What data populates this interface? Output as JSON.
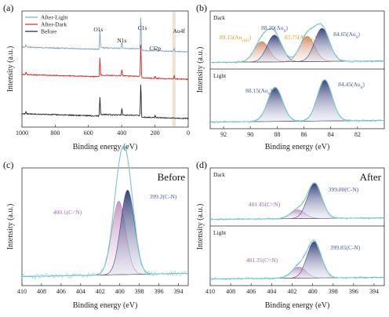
{
  "colors": {
    "teal": "#5fb8b8",
    "navy": "#2d3a78",
    "pink": "#b97fb4",
    "orange": "#c97a55",
    "gold": "#d7a02a",
    "red": "#cc2a2a",
    "lightblue": "#7fa3c6",
    "black": "#222222"
  },
  "chart_data": [
    {
      "id": "a",
      "type": "line",
      "panel_label": "(a)",
      "xlabel": "Binding energy (eV)",
      "ylabel": "Intensity (a.u.)",
      "xlim": [
        1000,
        0
      ],
      "xticks": [
        1000,
        800,
        600,
        400,
        200,
        0
      ],
      "legend": [
        "After-Light",
        "After-Dark",
        "Before"
      ],
      "legend_position": "top-left",
      "peak_labels": [
        {
          "text": "O1s",
          "x": 531
        },
        {
          "text": "N1s",
          "x": 399
        },
        {
          "text": "C1s",
          "x": 285
        },
        {
          "text": "Cl2p",
          "x": 199
        },
        {
          "text": "Au4f",
          "x": 84
        }
      ],
      "highlight_band": [
        96,
        76
      ],
      "series": [
        {
          "name": "After-Light",
          "color": "#7fa3c6",
          "offset": 2.0
        },
        {
          "name": "After-Dark",
          "color": "#cc2a2a",
          "offset": 1.0
        },
        {
          "name": "Before",
          "color": "#222222",
          "offset": 0.0
        }
      ]
    },
    {
      "id": "b",
      "type": "line",
      "panel_label": "(b)",
      "xlabel": "Binding energy (eV)",
      "ylabel": "Intensity (a.u.)",
      "xlim": [
        93,
        80
      ],
      "xticks": [
        92,
        90,
        88,
        86,
        84,
        82
      ],
      "subpanels": [
        {
          "label": "Dark",
          "peaks": [
            {
              "label": "89.15(Au(III))",
              "display": "89.15(Au",
              "sub": "(III)",
              "suffix": ")",
              "center": 89.15,
              "height": 0.42,
              "color": "#c97a55",
              "label_color": "#d7a02a"
            },
            {
              "label": "88.20(Au0)",
              "display": "88.20(Au",
              "sub": "0",
              "suffix": ")",
              "center": 88.2,
              "height": 0.55,
              "color": "#2d3a78",
              "label_color": "#4a5aa0"
            },
            {
              "label": "85.75(Au(III))",
              "display": "85.75(Au",
              "sub": "(III)",
              "suffix": ")",
              "center": 85.75,
              "height": 0.52,
              "color": "#c97a55",
              "label_color": "#d7a02a"
            },
            {
              "label": "84.65(Au0)",
              "display": "84.65(Au",
              "sub": "0",
              "suffix": ")",
              "center": 84.65,
              "height": 0.68,
              "color": "#2d3a78",
              "label_color": "#4a5aa0"
            }
          ]
        },
        {
          "label": "Light",
          "peaks": [
            {
              "label": "88.15(Au0)",
              "display": "88.15(Au",
              "sub": "0",
              "suffix": ")",
              "center": 88.15,
              "height": 0.68,
              "color": "#2d3a78",
              "label_color": "#4a5aa0"
            },
            {
              "label": "84.45(Au0)",
              "display": "84.45(Au",
              "sub": "0",
              "suffix": ")",
              "center": 84.45,
              "height": 0.82,
              "color": "#2d3a78",
              "label_color": "#4a5aa0"
            }
          ]
        }
      ]
    },
    {
      "id": "c",
      "type": "line",
      "panel_label": "(c)",
      "title": "Before",
      "xlabel": "Binding energy (eV)",
      "ylabel": "Intensity (a.u.)",
      "xlim": [
        410,
        393
      ],
      "xticks": [
        410,
        408,
        406,
        404,
        402,
        400,
        398,
        396,
        394
      ],
      "peaks": [
        {
          "label": "400.1(C=N)",
          "center": 400.1,
          "height": 0.68,
          "color": "#b97fb4",
          "label_color": "#a26ab0"
        },
        {
          "label": "399.2(C-N)",
          "center": 399.2,
          "height": 0.78,
          "color": "#2d3a78",
          "label_color": "#4a5aa0"
        }
      ]
    },
    {
      "id": "d",
      "type": "line",
      "panel_label": "(d)",
      "title": "After",
      "xlabel": "Binding energy (eV)",
      "ylabel": "Intensity (a.u.)",
      "xlim": [
        410,
        393
      ],
      "xticks": [
        410,
        408,
        406,
        404,
        402,
        400,
        398,
        396,
        394
      ],
      "subpanels": [
        {
          "label": "Dark",
          "peaks": [
            {
              "label": "401.45(C=N)",
              "center": 401.45,
              "height": 0.18,
              "color": "#b97fb4",
              "label_color": "#a26ab0"
            },
            {
              "label": "399.80(C-N)",
              "center": 399.8,
              "height": 0.72,
              "color": "#2d3a78",
              "label_color": "#4a5aa0"
            }
          ]
        },
        {
          "label": "Light",
          "peaks": [
            {
              "label": "401.35(C=N)",
              "center": 401.35,
              "height": 0.22,
              "color": "#b97fb4",
              "label_color": "#a26ab0"
            },
            {
              "label": "399.85(C-N)",
              "center": 399.85,
              "height": 0.72,
              "color": "#2d3a78",
              "label_color": "#4a5aa0"
            }
          ]
        }
      ]
    }
  ]
}
